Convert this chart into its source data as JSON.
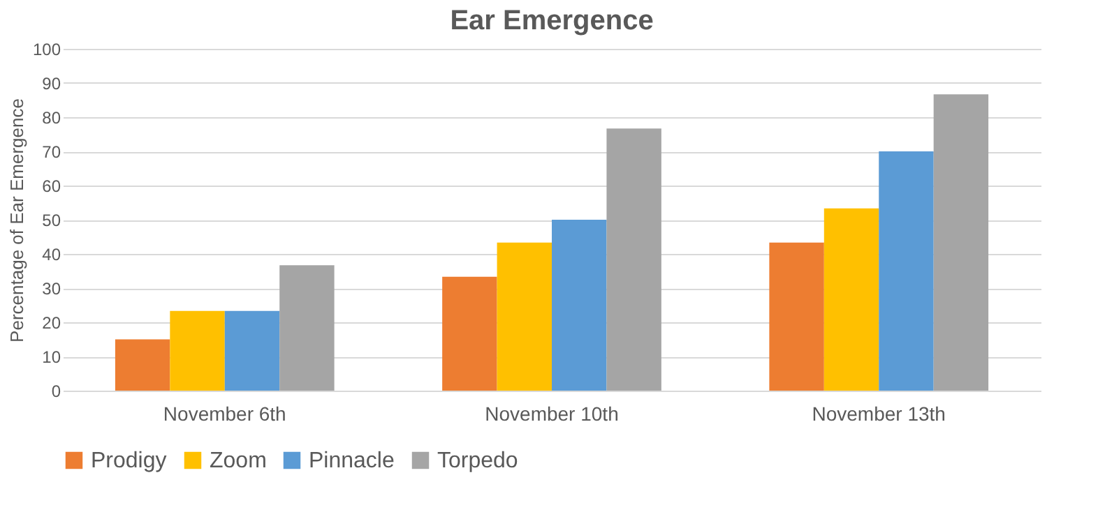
{
  "chart_data": {
    "type": "bar",
    "title": "Ear Emergence",
    "ylabel": "Percentage of Ear Emergence",
    "categories": [
      "November 6th",
      "November 10th",
      "November 13th"
    ],
    "series": [
      {
        "name": "Prodigy",
        "color": "#ed7d31",
        "values": [
          15,
          33.3,
          43.3
        ]
      },
      {
        "name": "Zoom",
        "color": "#ffc000",
        "values": [
          23.3,
          43.3,
          53.3
        ]
      },
      {
        "name": "Pinnacle",
        "color": "#5b9bd5",
        "values": [
          23.3,
          50,
          70
        ]
      },
      {
        "name": "Torpedo",
        "color": "#a5a5a5",
        "values": [
          36.7,
          76.7,
          86.7
        ]
      }
    ],
    "ylim": [
      0,
      100
    ],
    "yticks": [
      0,
      10,
      20,
      30,
      40,
      50,
      60,
      70,
      80,
      90,
      100
    ],
    "grid": "y",
    "legend": "bottom"
  }
}
